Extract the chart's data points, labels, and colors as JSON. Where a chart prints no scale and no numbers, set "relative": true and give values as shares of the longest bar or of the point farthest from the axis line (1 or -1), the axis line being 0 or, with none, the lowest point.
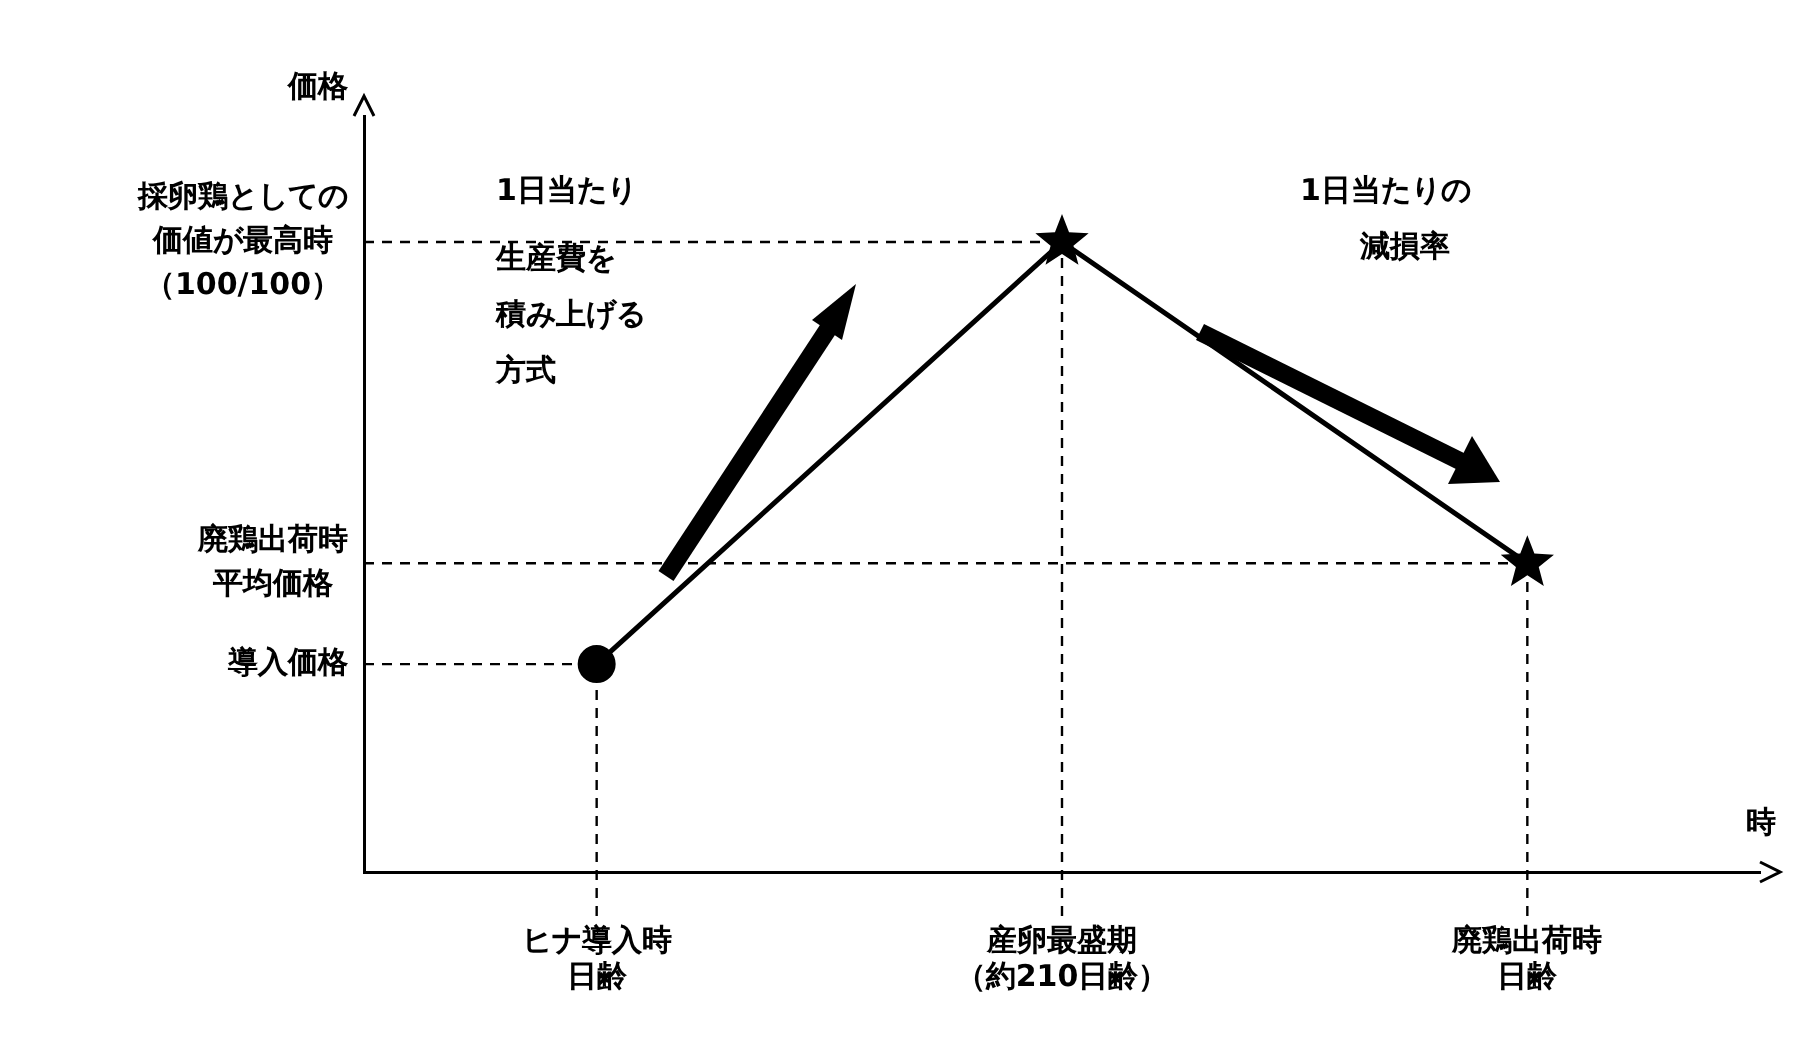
{
  "chart_data": {
    "type": "line",
    "relative": true,
    "ylabel": "価格",
    "xlabel": "時",
    "grid": false,
    "legend": false,
    "categories": [
      "ヒナ導入時日齢",
      "産卵最盛期（約210日齢）",
      "廃鶏出荷時日齢"
    ],
    "series": [
      {
        "color": "#000000",
        "marker": "none",
        "values": [
          0.33,
          1,
          0.49
        ]
      },
      {
        "type": "scatter",
        "color": "#000000",
        "marker": "circle",
        "x": [
          "ヒナ導入時日齢"
        ],
        "values": [
          0.33
        ]
      },
      {
        "type": "scatter",
        "color": "#000000",
        "marker": "star",
        "x": [
          "産卵最盛期（約210日齢）",
          "廃鶏出荷時日齢"
        ],
        "values": [
          1,
          0.49
        ]
      }
    ],
    "ref_lines": [
      {
        "axis": "y",
        "value": 1,
        "label": "採卵鶏としての価値が最高時（100/100）",
        "line_style": "dashed"
      },
      {
        "axis": "y",
        "value": 0.49,
        "label": "廃鶏出荷時平均価格",
        "line_style": "dashed"
      },
      {
        "axis": "y",
        "value": 0.33,
        "label": "導入価格",
        "line_style": "dashed"
      },
      {
        "axis": "x",
        "value": "ヒナ導入時日齢",
        "line_style": "dashed"
      },
      {
        "axis": "x",
        "value": "産卵最盛期（約210日齢）",
        "line_style": "dashed"
      },
      {
        "axis": "x",
        "value": "廃鶏出荷時日齢",
        "line_style": "dashed"
      }
    ],
    "annotations": [
      "1日当たり生産費を積み上げる方式",
      "1日当たりの減損率"
    ]
  }
}
